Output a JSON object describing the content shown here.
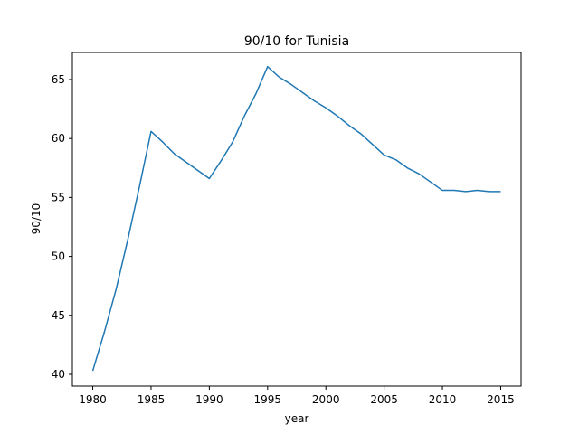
{
  "chart_data": {
    "type": "line",
    "title": "90/10 for Tunisia",
    "xlabel": "year",
    "ylabel": "90/10",
    "xlim": [
      1978.25,
      2016.75
    ],
    "ylim": [
      39.0,
      67.3
    ],
    "xticks": [
      1980,
      1985,
      1990,
      1995,
      2000,
      2005,
      2010,
      2015
    ],
    "yticks": [
      40,
      45,
      50,
      55,
      60,
      65
    ],
    "grid": false,
    "series": [
      {
        "color": "#1f77b4",
        "x": [
          1980,
          1981,
          1982,
          1983,
          1984,
          1985,
          1986,
          1987,
          1988,
          1989,
          1990,
          1991,
          1992,
          1993,
          1994,
          1995,
          1996,
          1997,
          1998,
          1999,
          2000,
          2001,
          2002,
          2003,
          2004,
          2005,
          2006,
          2007,
          2008,
          2009,
          2010,
          2011,
          2012,
          2013,
          2014,
          2015
        ],
        "y": [
          40.3,
          43.6,
          47.2,
          51.4,
          55.9,
          60.6,
          59.7,
          58.7,
          58.0,
          57.3,
          56.6,
          58.1,
          59.7,
          61.9,
          63.8,
          66.1,
          65.2,
          64.6,
          63.9,
          63.2,
          62.6,
          61.9,
          61.1,
          60.4,
          59.5,
          58.6,
          58.2,
          57.5,
          57.0,
          56.3,
          55.6,
          55.6,
          55.5,
          55.6,
          55.5,
          55.5
        ]
      }
    ]
  }
}
